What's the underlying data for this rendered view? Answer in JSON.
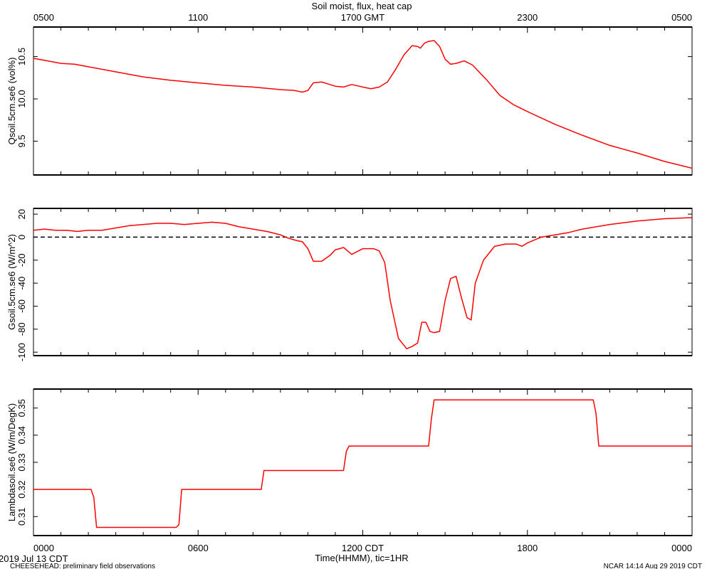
{
  "header": {
    "title": "Soil moist, flux, heat cap",
    "date_label": "2019 Jul 13 CDT",
    "project_label": "CHEESEHEAD: preliminary field observations",
    "credit_label": "NCAR 14:14 Aug 29 2019 CDT"
  },
  "chart_data": [
    {
      "type": "line",
      "title": "Soil moist, flux, heat cap",
      "ylabel": "Qsoil.5cm.se6 (vol%)",
      "ylim": [
        9.1,
        10.85
      ],
      "yticks": [
        "9.5",
        "10.0",
        "10.5"
      ],
      "xlim": [
        0,
        24
      ],
      "top_xticks": [
        "0500",
        "1100",
        "1700 GMT",
        "2300",
        "0500"
      ],
      "top_xlabel": "",
      "grid": false,
      "series": [
        {
          "color": "#ff0000",
          "x": [
            0,
            0.5,
            1,
            1.5,
            2,
            3,
            4,
            5,
            6,
            7,
            8,
            9,
            9.5,
            9.8,
            10.0,
            10.2,
            10.5,
            10.8,
            11.0,
            11.3,
            11.6,
            12.0,
            12.3,
            12.6,
            12.9,
            13.2,
            13.5,
            13.8,
            14.0,
            14.1,
            14.25,
            14.4,
            14.6,
            14.8,
            15.0,
            15.2,
            15.4,
            15.7,
            16.0,
            16.5,
            17.0,
            17.5,
            18.0,
            19.0,
            20.0,
            21.0,
            22.0,
            23.0,
            24.0
          ],
          "values": [
            10.48,
            10.45,
            10.42,
            10.41,
            10.38,
            10.32,
            10.26,
            10.22,
            10.19,
            10.16,
            10.14,
            10.11,
            10.1,
            10.08,
            10.1,
            10.19,
            10.2,
            10.17,
            10.15,
            10.14,
            10.17,
            10.14,
            10.12,
            10.14,
            10.2,
            10.35,
            10.52,
            10.63,
            10.62,
            10.6,
            10.66,
            10.68,
            10.69,
            10.62,
            10.47,
            10.41,
            10.42,
            10.45,
            10.4,
            10.23,
            10.04,
            9.93,
            9.85,
            9.7,
            9.57,
            9.45,
            9.36,
            9.26,
            9.18
          ]
        }
      ],
      "reference_lines": []
    },
    {
      "type": "line",
      "ylabel": "Gsoil.5cm.se6 (W/m^2)",
      "ylim": [
        -103,
        25
      ],
      "yticks": [
        "-100",
        "-80",
        "-60",
        "-40",
        "-20",
        "0",
        "20"
      ],
      "xlim": [
        0,
        24
      ],
      "grid": false,
      "series": [
        {
          "color": "#ff0000",
          "x": [
            0,
            0.4,
            0.8,
            1.2,
            1.6,
            2,
            2.5,
            3,
            3.5,
            4,
            4.5,
            5,
            5.5,
            6,
            6.5,
            7,
            7.5,
            8,
            8.5,
            9,
            9.3,
            9.6,
            9.8,
            10.0,
            10.2,
            10.5,
            10.8,
            11.0,
            11.3,
            11.6,
            12.0,
            12.4,
            12.6,
            12.8,
            13.0,
            13.3,
            13.6,
            13.8,
            14.0,
            14.15,
            14.3,
            14.45,
            14.6,
            14.8,
            15.0,
            15.2,
            15.4,
            15.6,
            15.8,
            15.95,
            16.1,
            16.4,
            16.8,
            17.2,
            17.6,
            17.8,
            18.0,
            18.5,
            19.0,
            19.5,
            20.0,
            21.0,
            22.0,
            23.0,
            24.0
          ],
          "values": [
            6,
            7,
            6,
            6,
            5,
            6,
            6,
            8,
            10,
            11,
            12,
            12,
            11,
            12,
            13,
            12,
            9,
            7,
            5,
            2,
            -1,
            -3,
            -4,
            -10,
            -21,
            -21,
            -16,
            -11,
            -9,
            -15,
            -10,
            -10,
            -12,
            -22,
            -55,
            -88,
            -97,
            -95,
            -92,
            -74,
            -74,
            -82,
            -83,
            -82,
            -55,
            -36,
            -34,
            -53,
            -70,
            -72,
            -40,
            -20,
            -8,
            -6,
            -6,
            -8,
            -5,
            0,
            2,
            4,
            7,
            11,
            14,
            16,
            17
          ]
        }
      ],
      "reference_lines": [
        {
          "y": 0,
          "style": "dashed",
          "color": "#000000"
        }
      ]
    },
    {
      "type": "line",
      "ylabel": "Lambdasoil.se6 (W/m/DegK)",
      "ylim": [
        0.303,
        0.357
      ],
      "yticks": [
        "0.31",
        "0.32",
        "0.33",
        "0.34",
        "0.35"
      ],
      "xlim": [
        0,
        24
      ],
      "bottom_xticks": [
        "0000",
        "0600",
        "1200 CDT",
        "1800",
        "0000"
      ],
      "xlabel": "Time(HHMM), tic=1HR",
      "grid": false,
      "series": [
        {
          "color": "#ff0000",
          "x": [
            0,
            2.1,
            2.2,
            2.3,
            5.2,
            5.3,
            5.4,
            8.3,
            8.4,
            11.3,
            11.4,
            11.5,
            14.4,
            14.5,
            14.6,
            20.4,
            20.5,
            20.6,
            24
          ],
          "values": [
            0.32,
            0.32,
            0.317,
            0.306,
            0.306,
            0.307,
            0.32,
            0.32,
            0.327,
            0.327,
            0.334,
            0.336,
            0.336,
            0.346,
            0.353,
            0.353,
            0.348,
            0.336,
            0.336
          ]
        }
      ],
      "reference_lines": []
    }
  ]
}
